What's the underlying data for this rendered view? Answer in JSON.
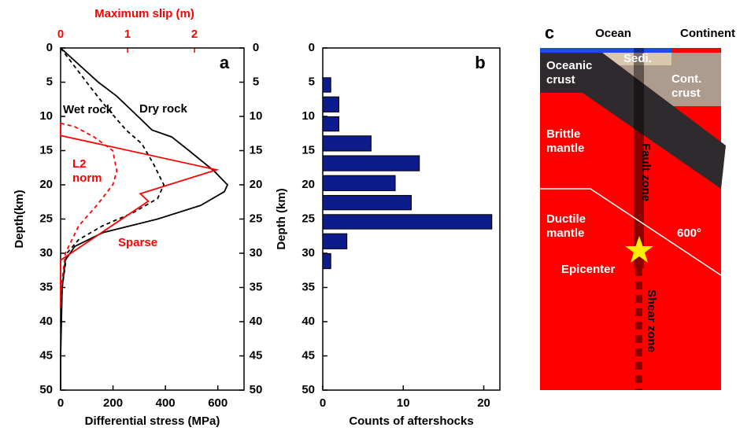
{
  "chart_data": [
    {
      "type": "line",
      "panel_label": "a",
      "xlabel": "Differential stress (MPa)",
      "x2label": "Maximum slip (m)",
      "ylabel": "Depth(km)",
      "xlim": [
        0,
        700
      ],
      "xticks": [
        0,
        200,
        400,
        600
      ],
      "x2lim": [
        0,
        2.74
      ],
      "x2ticks": [
        0,
        1,
        2
      ],
      "x2color": "#ff0000",
      "ylim": [
        0,
        50
      ],
      "yticks": [
        0,
        5,
        10,
        15,
        20,
        25,
        30,
        35,
        40,
        45,
        50
      ],
      "y_inverted": true,
      "series": [
        {
          "name": "Dry rock",
          "color": "#000000",
          "dash": false,
          "axis": "x",
          "depth": [
            0,
            5,
            7,
            10,
            12,
            13,
            15,
            18,
            20,
            21,
            23,
            25,
            27,
            29,
            31,
            35,
            40,
            45,
            50
          ],
          "values": [
            0,
            144,
            213,
            295,
            349,
            424,
            490,
            586,
            637,
            625,
            535,
            370,
            160,
            54,
            18,
            6,
            3,
            0,
            0
          ]
        },
        {
          "name": "Wet rock",
          "color": "#000000",
          "dash": true,
          "axis": "x",
          "depth": [
            0,
            5,
            8,
            10,
            12,
            14,
            17,
            20,
            22,
            24,
            26,
            28,
            30,
            35,
            40
          ],
          "values": [
            0,
            99,
            160,
            205,
            250,
            310,
            355,
            394,
            370,
            280,
            160,
            69,
            24,
            6,
            0
          ]
        },
        {
          "name": "L2 norm",
          "color": "#ff0000",
          "dash": true,
          "axis": "x2",
          "depth": [
            11,
            11.5,
            13,
            15,
            18,
            20,
            23,
            26,
            30,
            35,
            38
          ],
          "values": [
            0,
            0.21,
            0.5,
            0.78,
            0.84,
            0.78,
            0.54,
            0.27,
            0.07,
            0.01,
            0
          ]
        },
        {
          "name": "Sparse",
          "color": "#ff0000",
          "dash": false,
          "axis": "x2",
          "depth": [
            11,
            12.8,
            17.8,
            21.3,
            22.4,
            31,
            38
          ],
          "values": [
            0,
            0,
            2.33,
            1.19,
            1.31,
            0,
            0
          ]
        }
      ]
    },
    {
      "type": "histogram",
      "panel_label": "b",
      "xlabel": "Counts of aftershocks",
      "ylabel": "Depth (km)",
      "color": "#0c1c8c",
      "xlim": [
        0,
        22
      ],
      "xticks": [
        0,
        10,
        20
      ],
      "ylim": [
        0,
        50
      ],
      "yticks": [
        0,
        5,
        10,
        15,
        20,
        25,
        30,
        35,
        40,
        45,
        50
      ],
      "y_inverted": true,
      "bins": [
        4,
        6.8,
        9.7,
        12.5,
        15.4,
        18.3,
        21.2,
        24,
        26.8,
        29.7,
        32.6
      ],
      "values": [
        1,
        2,
        2,
        6,
        12,
        9,
        11,
        21,
        3,
        1
      ]
    }
  ],
  "diagram": {
    "panel_label": "c",
    "ocean": "Ocean",
    "continent": "Continent",
    "sediment": "Sedi.",
    "oceanic_crust": "Oceanic crust",
    "continental_crust": "Cont. crust",
    "brittle_mantle": "Brittle mantle",
    "ductile_mantle": "Ductile mantle",
    "fault_zone": "Fault zone",
    "isotherm": "600°",
    "epicenter": "Epicenter",
    "shear_zone": "Shear zone"
  }
}
